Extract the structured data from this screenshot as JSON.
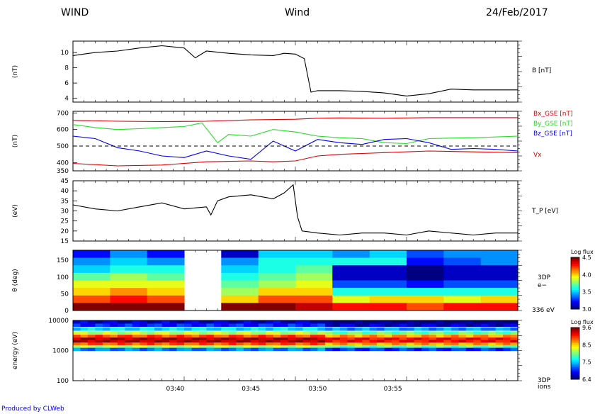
{
  "header": {
    "left": "WIND",
    "center": "Wind",
    "right": "24/Feb/2017"
  },
  "footer": "Produced by CLWeb",
  "colors": {
    "black": "#000000",
    "red": "#dd0000",
    "green": "#22dd22",
    "blue": "#0000ee"
  },
  "time_ticks": [
    "03:40",
    "03:45",
    "03:50",
    "03:55"
  ],
  "chart_data": [
    {
      "type": "line",
      "panel": "magnetic-field",
      "ylabel": "(nT)",
      "ylim": [
        3.5,
        11.5
      ],
      "yticks": [
        "4",
        "6",
        "8",
        "10"
      ],
      "series": [
        {
          "name": "B [nT]",
          "color": "#000000",
          "x": [
            0,
            1,
            2,
            3,
            4,
            5,
            5.5,
            6,
            7,
            8,
            9,
            9.5,
            10,
            10.4,
            10.7,
            11,
            12,
            13,
            14,
            15,
            16,
            17,
            18,
            19,
            20
          ],
          "y": [
            9.6,
            10.0,
            10.2,
            10.6,
            10.9,
            10.6,
            9.3,
            10.2,
            9.9,
            9.7,
            9.6,
            9.9,
            9.8,
            9.2,
            4.8,
            5.0,
            5.0,
            4.9,
            4.7,
            4.3,
            4.6,
            5.2,
            5.1,
            5.1,
            5.1
          ]
        }
      ]
    },
    {
      "type": "line",
      "panel": "field-components-and-velocity",
      "ylabel": "(nT)",
      "ylim": [
        350,
        710
      ],
      "yticks": [
        "700",
        "600",
        "500",
        "400",
        "350"
      ],
      "series": [
        {
          "name": "Bx_GSE [nT]",
          "color": "#dd0000",
          "x": [
            0,
            2,
            4,
            6,
            8,
            10,
            11,
            12,
            14,
            16,
            18,
            20
          ],
          "y": [
            655,
            650,
            648,
            650,
            658,
            662,
            668,
            670,
            668,
            672,
            672,
            672
          ]
        },
        {
          "name": "By_GSE [nT]",
          "color": "#22dd22",
          "x": [
            0,
            1,
            2,
            3,
            4,
            5,
            5.8,
            6.5,
            7,
            8,
            9,
            10,
            11,
            12,
            13,
            14,
            15,
            16,
            17,
            18,
            19,
            20
          ],
          "y": [
            630,
            612,
            600,
            605,
            612,
            618,
            640,
            520,
            570,
            560,
            600,
            585,
            560,
            550,
            545,
            520,
            515,
            545,
            548,
            550,
            555,
            560
          ]
        },
        {
          "name": "Bz_GSE [nT]",
          "color": "#0000ee",
          "x": [
            0,
            1,
            2,
            3,
            4,
            5,
            6,
            7,
            8,
            9,
            10,
            11,
            12,
            13,
            14,
            15,
            16,
            17,
            18,
            19,
            20
          ],
          "y": [
            560,
            545,
            490,
            470,
            440,
            430,
            470,
            440,
            420,
            530,
            470,
            540,
            520,
            510,
            540,
            545,
            520,
            480,
            485,
            480,
            470
          ]
        },
        {
          "name": "Vx",
          "color": "#dd0000",
          "x": [
            0,
            2,
            4,
            6,
            8,
            9,
            10,
            11,
            12,
            14,
            16,
            18,
            20
          ],
          "y": [
            395,
            380,
            385,
            405,
            410,
            405,
            410,
            440,
            450,
            460,
            470,
            465,
            460
          ]
        }
      ]
    },
    {
      "type": "line",
      "panel": "proton-temperature",
      "ylabel": "(eV)",
      "ylim": [
        15,
        45
      ],
      "yticks": [
        "15",
        "20",
        "25",
        "30",
        "35",
        "40",
        "45"
      ],
      "series": [
        {
          "name": "T_P [eV]",
          "color": "#000000",
          "x": [
            0,
            1,
            2,
            3,
            4,
            5,
            6,
            6.2,
            6.5,
            7,
            8,
            9,
            9.5,
            9.9,
            10.1,
            10.3,
            11,
            12,
            13,
            14,
            15,
            16,
            17,
            18,
            19,
            20
          ],
          "y": [
            33,
            31,
            30,
            32,
            34,
            31,
            32,
            28,
            35,
            37,
            38,
            36,
            39,
            43,
            27,
            20,
            19,
            18,
            19,
            19,
            18,
            20,
            19,
            18,
            19,
            19
          ]
        }
      ]
    },
    {
      "type": "heatmap",
      "panel": "electron-pitch-angle",
      "ylabel": "θ (deg)",
      "instrument": "3DP",
      "species": "e−",
      "energy_label": "336 eV",
      "ylim": [
        0,
        180
      ],
      "yticks": [
        "0",
        "50",
        "100",
        "150"
      ],
      "colorbar": {
        "title": "Log flux",
        "range": [
          3.0,
          4.5
        ],
        "ticks": [
          "4.5",
          "4.0",
          "3.5",
          "3.0"
        ]
      },
      "rows_deg": [
        165,
        142,
        120,
        97,
        75,
        52,
        30,
        7
      ],
      "columns": [
        [
          3.2,
          3.4,
          3.5,
          3.7,
          3.9,
          4.0,
          4.2,
          4.5
        ],
        [
          3.4,
          3.5,
          3.6,
          3.8,
          3.9,
          4.1,
          4.3,
          4.5
        ],
        [
          3.2,
          3.4,
          3.6,
          3.7,
          3.9,
          4.0,
          4.2,
          4.5
        ],
        null,
        [
          3.1,
          3.4,
          3.5,
          3.6,
          3.7,
          3.8,
          4.0,
          4.5
        ],
        [
          3.5,
          3.6,
          3.6,
          3.7,
          3.8,
          4.0,
          4.2,
          4.5
        ],
        [
          3.5,
          3.6,
          3.7,
          3.8,
          3.9,
          4.0,
          4.2,
          4.4
        ],
        [
          3.4,
          3.6,
          3.1,
          3.1,
          3.3,
          3.6,
          3.9,
          4.3
        ],
        [
          3.5,
          3.6,
          3.1,
          3.1,
          3.3,
          3.6,
          4.0,
          4.3
        ],
        [
          3.3,
          3.2,
          3.0,
          3.0,
          3.2,
          3.6,
          4.0,
          4.2
        ],
        [
          3.4,
          3.3,
          3.1,
          3.1,
          3.3,
          3.6,
          3.9,
          4.3
        ],
        [
          3.4,
          3.4,
          3.1,
          3.1,
          3.3,
          3.6,
          4.0,
          4.3
        ]
      ]
    },
    {
      "type": "heatmap",
      "panel": "ion-energy-spectrogram",
      "ylabel": "energy (eV)",
      "instrument": "3DP",
      "species": "ions",
      "ylim": [
        100,
        10000
      ],
      "yticks": [
        "100",
        "1000",
        "10000"
      ],
      "colorbar": {
        "title": "Log flux",
        "range": [
          6.4,
          9.6
        ],
        "ticks": [
          "9.6",
          "8.5",
          "7.5",
          "6.4"
        ]
      },
      "energy_channels_ev": [
        9000,
        7000,
        5200,
        3900,
        3000,
        2400,
        2000,
        1650,
        1350,
        1100
      ]
    }
  ]
}
